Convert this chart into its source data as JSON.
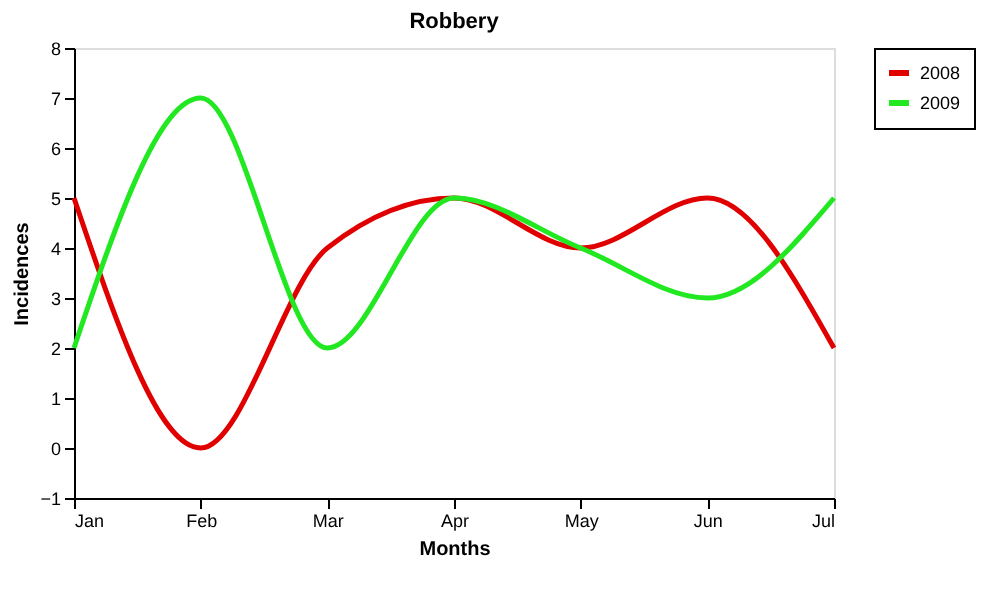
{
  "chart_data": {
    "type": "line",
    "title": "Robbery",
    "xlabel": "Months",
    "ylabel": "Incidences",
    "categories": [
      "Jan",
      "Feb",
      "Mar",
      "Apr",
      "May",
      "Jun",
      "Jul"
    ],
    "series": [
      {
        "name": "2008",
        "color": "#e00000",
        "values": [
          5,
          0,
          4,
          5,
          4,
          5,
          2
        ]
      },
      {
        "name": "2009",
        "color": "#22e822",
        "values": [
          2,
          7,
          2,
          5,
          4,
          3,
          5
        ]
      }
    ],
    "ylim": [
      -1,
      8
    ],
    "yticks": [
      -1,
      0,
      1,
      2,
      3,
      4,
      5,
      6,
      7,
      8
    ],
    "grid": false,
    "legend": "right",
    "marker": "none",
    "line_style": "solid"
  }
}
